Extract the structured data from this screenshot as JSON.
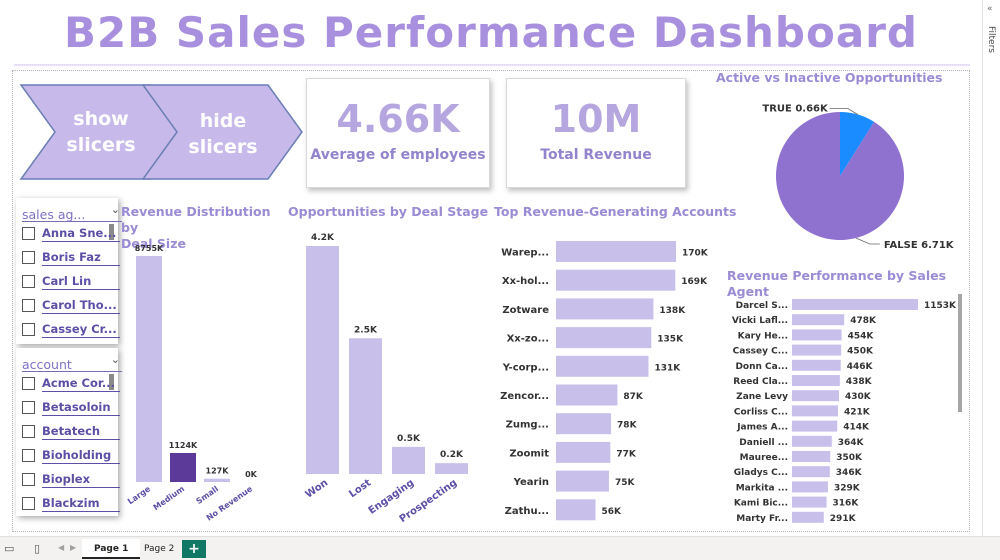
{
  "title": "B2B Sales Performance Dashboard",
  "buttons": {
    "show": [
      "show",
      "slicers"
    ],
    "hide": [
      "hide",
      "slicers"
    ]
  },
  "kpis": [
    {
      "value": "4.66K",
      "label": "Average of employees"
    },
    {
      "value": "10M",
      "label": "Total Revenue"
    }
  ],
  "slicers": {
    "sales_agent": {
      "title": "sales ag...",
      "items": [
        "Anna Sne...",
        "Boris Faz",
        "Carl Lin",
        "Carol Tho...",
        "Cassey Cr..."
      ]
    },
    "account": {
      "title": "account",
      "items": [
        "Acme Cor...",
        "Betasoloin",
        "Betatech",
        "Bioholding",
        "Bioplex",
        "Blackzim"
      ]
    }
  },
  "chart_titles": {
    "deal_size": [
      "Revenue Distribution by",
      "Deal Size"
    ],
    "deal_stage": "Opportunities by Deal Stage",
    "accounts": "Top Revenue-Generating Accounts",
    "active": "Active vs Inactive Opportunities",
    "agents": "Revenue Performance by Sales Agent"
  },
  "chart_data": [
    {
      "id": "deal_size",
      "type": "bar",
      "title": "Revenue Distribution by Deal Size",
      "categories": [
        "Large",
        "Medium",
        "Small",
        "No Revenue"
      ],
      "values": [
        8755,
        1124,
        127,
        0
      ],
      "labels": [
        "8755K",
        "1124K",
        "127K",
        "0K"
      ],
      "colors": [
        "#c9bfeb",
        "#5b3a9a",
        "#c9bfeb",
        "#c9bfeb"
      ]
    },
    {
      "id": "deal_stage",
      "type": "bar",
      "title": "Opportunities by Deal Stage",
      "categories": [
        "Won",
        "Lost",
        "Engaging",
        "Prospecting"
      ],
      "values": [
        4200,
        2500,
        500,
        200
      ],
      "labels": [
        "4.2K",
        "2.5K",
        "0.5K",
        "0.2K"
      ]
    },
    {
      "id": "accounts",
      "type": "bar",
      "title": "Top Revenue-Generating Accounts",
      "categories": [
        "Warep...",
        "Xx-hol...",
        "Zotware",
        "Xx-zo...",
        "Y-corp...",
        "Zencor...",
        "Zumg...",
        "Zoomit",
        "Yearin",
        "Zathu..."
      ],
      "values": [
        170,
        169,
        138,
        135,
        131,
        87,
        78,
        77,
        75,
        56
      ],
      "labels": [
        "170K",
        "169K",
        "138K",
        "135K",
        "131K",
        "87K",
        "78K",
        "77K",
        "75K",
        "56K"
      ]
    },
    {
      "id": "active",
      "type": "pie",
      "title": "Active vs Inactive Opportunities",
      "categories": [
        "TRUE",
        "FALSE"
      ],
      "values": [
        0.66,
        6.71
      ],
      "labels": [
        "TRUE 0.66K",
        "FALSE 6.71K"
      ],
      "colors": [
        "#1a8cff",
        "#8f72d0"
      ]
    },
    {
      "id": "agents",
      "type": "bar",
      "title": "Revenue Performance by Sales Agent",
      "categories": [
        "Darcel S...",
        "Vicki Lafl...",
        "Kary He...",
        "Cassey C...",
        "Donn Ca...",
        "Reed Cla...",
        "Zane Levy",
        "Corliss C...",
        "James A...",
        "Daniell ...",
        "Mauree...",
        "Gladys C...",
        "Markita ...",
        "Kami Bic...",
        "Marty Fr..."
      ],
      "values": [
        1153,
        478,
        454,
        450,
        446,
        438,
        430,
        421,
        414,
        364,
        350,
        346,
        329,
        316,
        291
      ],
      "labels": [
        "1153K",
        "478K",
        "454K",
        "450K",
        "446K",
        "438K",
        "430K",
        "421K",
        "414K",
        "364K",
        "350K",
        "346K",
        "329K",
        "316K",
        "291K"
      ]
    }
  ],
  "colors": {
    "bar": "#c9bfeb",
    "title": "#a990de",
    "accent": "#117865"
  },
  "filters_pane": {
    "label": "Filters"
  },
  "page_tabs": [
    "Page 1",
    "Page 2"
  ],
  "add_page": "+"
}
